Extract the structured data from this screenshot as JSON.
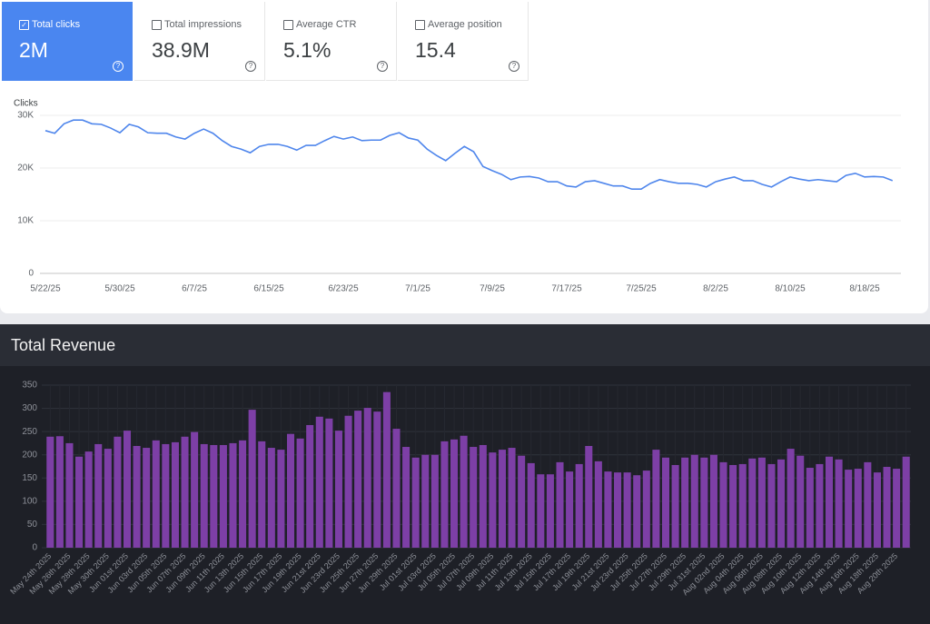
{
  "metrics": [
    {
      "label": "Total clicks",
      "value": "2M"
    },
    {
      "label": "Total impressions",
      "value": "38.9M"
    },
    {
      "label": "Average CTR",
      "value": "5.1%"
    },
    {
      "label": "Average position",
      "value": "15.4"
    }
  ],
  "chart_data": [
    {
      "type": "line",
      "y_label": "Clicks",
      "color": "#4f86ec",
      "grid": true,
      "ylim": [
        0,
        30000
      ],
      "yticks": [
        0,
        {
          "value": 10000,
          "label": "10K"
        },
        {
          "value": 20000,
          "label": "20K"
        },
        {
          "value": 30000,
          "label": "30K"
        }
      ],
      "categories": [
        "5/22/25",
        null,
        null,
        null,
        null,
        null,
        null,
        null,
        "5/30/25",
        null,
        null,
        null,
        null,
        null,
        null,
        null,
        "6/7/25",
        null,
        null,
        null,
        null,
        null,
        null,
        null,
        "6/15/25",
        null,
        null,
        null,
        null,
        null,
        null,
        null,
        "6/23/25",
        null,
        null,
        null,
        null,
        null,
        null,
        null,
        "7/1/25",
        null,
        null,
        null,
        null,
        null,
        null,
        null,
        "7/9/25",
        null,
        null,
        null,
        null,
        null,
        null,
        null,
        "7/17/25",
        null,
        null,
        null,
        null,
        null,
        null,
        null,
        "7/25/25",
        null,
        null,
        null,
        null,
        null,
        null,
        null,
        "8/2/25",
        null,
        null,
        null,
        null,
        null,
        null,
        null,
        "8/10/25",
        null,
        null,
        null,
        null,
        null,
        null,
        null,
        "8/18/25",
        null,
        null,
        null
      ],
      "values": [
        27100,
        26600,
        28400,
        29100,
        29100,
        28400,
        28300,
        27600,
        26700,
        28300,
        27800,
        26700,
        26600,
        26600,
        25900,
        25500,
        26600,
        27400,
        26600,
        25200,
        24100,
        23600,
        22900,
        24100,
        24500,
        24500,
        24100,
        23400,
        24300,
        24300,
        25200,
        26000,
        25500,
        25900,
        25200,
        25300,
        25300,
        26200,
        26700,
        25700,
        25300,
        23600,
        22400,
        21400,
        22800,
        24100,
        23100,
        20300,
        19500,
        18800,
        17800,
        18300,
        18400,
        18100,
        17400,
        17400,
        16600,
        16400,
        17400,
        17600,
        17100,
        16600,
        16600,
        16000,
        16000,
        17100,
        17800,
        17400,
        17100,
        17100,
        16900,
        16400,
        17400,
        17900,
        18300,
        17600,
        17600,
        16900,
        16400,
        17400,
        18300,
        17900,
        17600,
        17800,
        17600,
        17400,
        18600,
        19000,
        18300,
        18400,
        18300,
        17600
      ]
    },
    {
      "type": "bar",
      "title": "Total Revenue",
      "color": "#7d3fa6",
      "grid": true,
      "ylim": [
        0,
        350
      ],
      "yticks": [
        0,
        50,
        100,
        150,
        200,
        250,
        300,
        350
      ],
      "categories": [
        "May 24th 2025",
        null,
        "May 26th 2025",
        null,
        "May 28th 2025",
        null,
        "May 30th 2025",
        null,
        "Jun 01st 2025",
        null,
        "Jun 03rd 2025",
        null,
        "Jun 05th 2025",
        null,
        "Jun 07th 2025",
        null,
        "Jun 09th 2025",
        null,
        "Jun 11th 2025",
        null,
        "Jun 13th 2025",
        null,
        "Jun 15th 2025",
        null,
        "Jun 17th 2025",
        null,
        "Jun 19th 2025",
        null,
        "Jun 21st 2025",
        null,
        "Jun 23rd 2025",
        null,
        "Jun 25th 2025",
        null,
        "Jun 27th 2025",
        null,
        "Jun 29th 2025",
        null,
        "Jul 01st 2025",
        null,
        "Jul 03rd 2025",
        null,
        "Jul 05th 2025",
        null,
        "Jul 07th 2025",
        null,
        "Jul 09th 2025",
        null,
        "Jul 11th 2025",
        null,
        "Jul 13th 2025",
        null,
        "Jul 15th 2025",
        null,
        "Jul 17th 2025",
        null,
        "Jul 19th 2025",
        null,
        "Jul 21st 2025",
        null,
        "Jul 23rd 2025",
        null,
        "Jul 25th 2025",
        null,
        "Jul 27th 2025",
        null,
        "Jul 29th 2025",
        null,
        "Jul 31st 2025",
        null,
        "Aug 02nd 2025",
        null,
        "Aug 04th 2025",
        null,
        "Aug 06th 2025",
        null,
        "Aug 08th 2025",
        null,
        "Aug 10th 2025",
        null,
        "Aug 12th 2025",
        null,
        "Aug 14th 2025",
        null,
        "Aug 16th 2025",
        null,
        "Aug 18th 2025",
        null,
        "Aug 20th 2025",
        null
      ],
      "values": [
        239,
        240,
        225,
        196,
        207,
        223,
        213,
        239,
        252,
        219,
        215,
        231,
        223,
        227,
        239,
        249,
        223,
        221,
        221,
        225,
        231,
        297,
        229,
        215,
        211,
        245,
        235,
        264,
        282,
        278,
        252,
        284,
        295,
        301,
        293,
        335,
        256,
        217,
        194,
        200,
        200,
        229,
        233,
        241,
        217,
        221,
        205,
        211,
        215,
        198,
        182,
        158,
        158,
        184,
        164,
        180,
        219,
        186,
        164,
        162,
        162,
        156,
        166,
        211,
        194,
        178,
        194,
        200,
        194,
        200,
        184,
        178,
        180,
        192,
        194,
        180,
        190,
        213,
        198,
        172,
        180,
        196,
        190,
        168,
        170,
        184,
        162,
        174,
        170,
        196
      ]
    }
  ]
}
